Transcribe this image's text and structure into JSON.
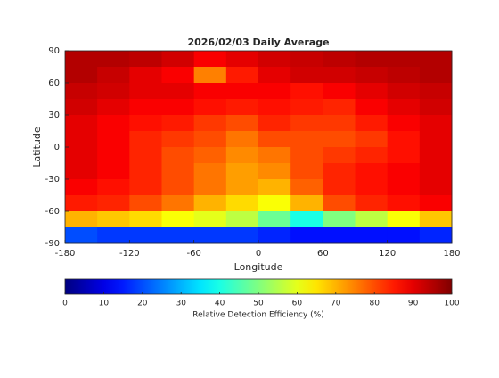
{
  "chart_data": {
    "type": "heatmap",
    "title": "2026/02/03 Daily Average",
    "xlabel": "Longitude",
    "ylabel": "Latitude",
    "xlim": [
      -180,
      180
    ],
    "ylim": [
      -90,
      90
    ],
    "xticks": [
      -180,
      -120,
      -60,
      0,
      60,
      120,
      180
    ],
    "yticks": [
      -90,
      -60,
      -30,
      0,
      30,
      60,
      90
    ],
    "x": [
      -165,
      -135,
      -105,
      -75,
      -45,
      -15,
      15,
      45,
      75,
      105,
      135,
      165
    ],
    "y": [
      82.5,
      67.5,
      52.5,
      37.5,
      22.5,
      7.5,
      -7.5,
      -22.5,
      -37.5,
      -52.5,
      -67.5,
      -82.5
    ],
    "values": [
      [
        95,
        95,
        94,
        92,
        88,
        90,
        92,
        93,
        94,
        95,
        95,
        95
      ],
      [
        95,
        93,
        90,
        88,
        75,
        85,
        90,
        92,
        92,
        93,
        94,
        95
      ],
      [
        93,
        92,
        90,
        90,
        88,
        88,
        88,
        86,
        88,
        90,
        92,
        93
      ],
      [
        92,
        90,
        88,
        88,
        86,
        85,
        86,
        85,
        84,
        88,
        90,
        92
      ],
      [
        90,
        88,
        86,
        85,
        82,
        80,
        84,
        82,
        82,
        85,
        88,
        90
      ],
      [
        90,
        88,
        84,
        82,
        80,
        76,
        80,
        80,
        80,
        82,
        86,
        90
      ],
      [
        90,
        88,
        84,
        80,
        78,
        74,
        76,
        80,
        82,
        84,
        86,
        90
      ],
      [
        90,
        88,
        84,
        80,
        76,
        72,
        74,
        80,
        84,
        86,
        88,
        90
      ],
      [
        88,
        86,
        84,
        80,
        76,
        72,
        70,
        78,
        84,
        86,
        88,
        90
      ],
      [
        85,
        84,
        80,
        76,
        70,
        66,
        62,
        70,
        80,
        84,
        86,
        88
      ],
      [
        70,
        68,
        66,
        62,
        60,
        56,
        48,
        40,
        50,
        56,
        62,
        68
      ],
      [
        20,
        18,
        18,
        18,
        18,
        18,
        16,
        14,
        14,
        14,
        14,
        16
      ]
    ],
    "colormap": "jet",
    "clim": [
      0,
      100
    ],
    "cticks": [
      0,
      10,
      20,
      30,
      40,
      50,
      60,
      70,
      80,
      90,
      100
    ],
    "clabel": "Relative Detection Efficiency (%)"
  }
}
